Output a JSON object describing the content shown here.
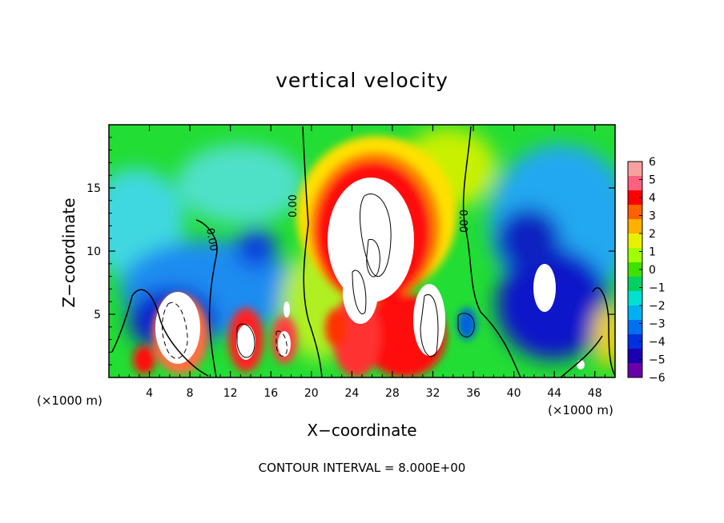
{
  "chart_data": {
    "type": "heatmap",
    "title": "vertical velocity",
    "xlabel": "X−coordinate",
    "ylabel": "Z−coordinate",
    "x_unit_label": "(×1000 m)",
    "x_unit_label_right": "(×1000 m)",
    "annotation": "CONTOUR INTERVAL = 8.000E+00",
    "xlim": [
      0,
      50
    ],
    "ylim": [
      0,
      20
    ],
    "xticks": [
      4,
      8,
      12,
      16,
      20,
      24,
      28,
      32,
      36,
      40,
      44,
      48
    ],
    "yticks": [
      5,
      10,
      15
    ],
    "colorbar": {
      "ticks": [
        6,
        5,
        4,
        3,
        2,
        1,
        0,
        -1,
        -2,
        -3,
        -4,
        -5,
        -6
      ],
      "range": [
        -6,
        6
      ],
      "colors": [
        "#6a00a8",
        "#1a00b0",
        "#0030e0",
        "#0070f0",
        "#00b0f0",
        "#00e0d0",
        "#00d060",
        "#40e000",
        "#a0ff00",
        "#e8f000",
        "#ffb000",
        "#ff6000",
        "#ff0000",
        "#ff6080",
        "#f8a0a0"
      ]
    },
    "contour_labels": [
      "0.00",
      "0.00",
      "0.00"
    ],
    "features": [
      {
        "kind": "updraft",
        "x": 26,
        "z": 11,
        "max": "> 6"
      },
      {
        "kind": "updraft",
        "x": 6.5,
        "z": 3.5,
        "max": "> 6"
      },
      {
        "kind": "updraft",
        "x": 13.5,
        "z": 3,
        "max": "> 6"
      },
      {
        "kind": "updraft",
        "x": 31,
        "z": 3.5,
        "max": "> 6"
      },
      {
        "kind": "downdraft",
        "x": 43,
        "z": 7,
        "max": "< -6"
      },
      {
        "kind": "downdraft",
        "x": 12,
        "z": 9,
        "max": "-4"
      }
    ]
  }
}
